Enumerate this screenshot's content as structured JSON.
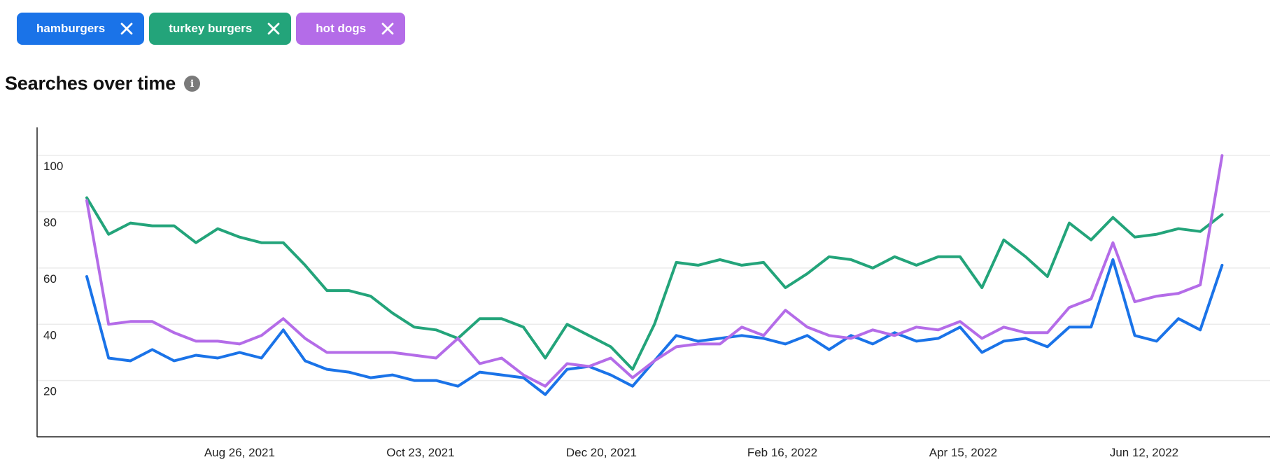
{
  "filters": [
    {
      "label": "hamburgers",
      "color": "#1a73e8",
      "remove_icon": "close-icon"
    },
    {
      "label": "turkey burgers",
      "color": "#23a47a",
      "remove_icon": "close-icon"
    },
    {
      "label": "hot dogs",
      "color": "#b46ce8",
      "remove_icon": "close-icon"
    }
  ],
  "section": {
    "title": "Searches over time",
    "info_icon": "info-icon",
    "info_glyph": "i"
  },
  "chart_data": {
    "type": "line",
    "title": "",
    "xlabel": "",
    "ylabel": "",
    "ylim": [
      0,
      110
    ],
    "y_ticks": [
      20,
      40,
      60,
      80,
      100
    ],
    "x_tick_labels": [
      "Aug 26, 2021",
      "Oct 23, 2021",
      "Dec 20, 2021",
      "Feb 16, 2022",
      "Apr 15, 2022",
      "Jun 12, 2022"
    ],
    "x_tick_dates": [
      "2021-08-26",
      "2021-10-23",
      "2021-12-20",
      "2022-02-16",
      "2022-04-15",
      "2022-06-12"
    ],
    "x_start": "2021-07-08",
    "x_step_days": 7,
    "grid": true,
    "series": [
      {
        "name": "hamburgers",
        "color": "#1a73e8",
        "values": [
          57,
          28,
          27,
          31,
          27,
          29,
          28,
          30,
          28,
          38,
          27,
          24,
          23,
          21,
          22,
          20,
          20,
          18,
          23,
          22,
          21,
          15,
          24,
          25,
          22,
          18,
          27,
          36,
          34,
          35,
          36,
          35,
          33,
          36,
          31,
          36,
          33,
          37,
          34,
          35,
          39,
          30,
          34,
          35,
          32,
          39,
          39,
          63,
          36,
          34,
          42,
          38,
          61
        ]
      },
      {
        "name": "turkey burgers",
        "color": "#23a47a",
        "values": [
          85,
          72,
          76,
          75,
          75,
          69,
          74,
          71,
          69,
          69,
          61,
          52,
          52,
          50,
          44,
          39,
          38,
          35,
          42,
          42,
          39,
          28,
          40,
          36,
          32,
          24,
          40,
          62,
          61,
          63,
          61,
          62,
          53,
          58,
          64,
          63,
          60,
          64,
          61,
          64,
          64,
          53,
          70,
          64,
          57,
          76,
          70,
          78,
          71,
          72,
          74,
          73,
          79
        ]
      },
      {
        "name": "hot dogs",
        "color": "#b46ce8",
        "values": [
          84,
          40,
          41,
          41,
          37,
          34,
          34,
          33,
          36,
          42,
          35,
          30,
          30,
          30,
          30,
          29,
          28,
          35,
          26,
          28,
          22,
          18,
          26,
          25,
          28,
          21,
          27,
          32,
          33,
          33,
          39,
          36,
          45,
          39,
          36,
          35,
          38,
          36,
          39,
          38,
          41,
          35,
          39,
          37,
          37,
          46,
          49,
          69,
          48,
          50,
          51,
          54,
          100
        ]
      }
    ]
  }
}
